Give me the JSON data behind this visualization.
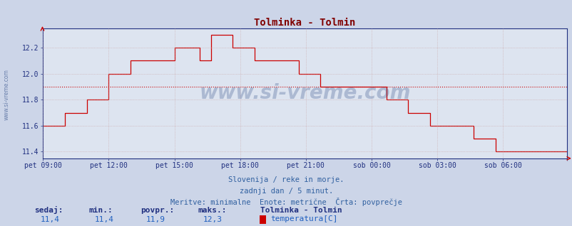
{
  "title": "Tolminka - Tolmin",
  "title_color": "#800000",
  "bg_color": "#ccd5e8",
  "plot_bg_color": "#dde4f0",
  "grid_color": "#c8a0a0",
  "line_color": "#cc0000",
  "avg_line_color": "#cc0000",
  "avg_line_value": 11.9,
  "ylabel_ticks": [
    11.4,
    11.6,
    11.8,
    12.0,
    12.2
  ],
  "ylim": [
    11.35,
    12.35
  ],
  "xlabel_ticks": [
    0,
    36,
    72,
    108,
    144,
    180,
    216,
    252,
    287
  ],
  "xlabel_labels": [
    "pet 09:00",
    "pet 12:00",
    "pet 15:00",
    "pet 18:00",
    "pet 21:00",
    "sob 00:00",
    "sob 03:00",
    "sob 06:00",
    ""
  ],
  "x_total_points": 288,
  "watermark": "www.si-vreme.com",
  "watermark_color": "#1a3a7a",
  "sub_text1": "Slovenija / reke in morje.",
  "sub_text2": "zadnji dan / 5 minut.",
  "sub_text3": "Meritve: minimalne  Enote: metrične  Črta: povprečje",
  "sub_color": "#3060a0",
  "bottom_labels": [
    "sedaj:",
    "min.:",
    "povpr.:",
    "maks.:"
  ],
  "bottom_values": [
    "11,4",
    "11,4",
    "11,9",
    "12,3"
  ],
  "bottom_label_color": "#203080",
  "bottom_value_color": "#2060c0",
  "legend_title": "Tolminka - Tolmin",
  "legend_label": "temperatura[C]",
  "legend_color": "#cc0000",
  "axis_color": "#203080",
  "tick_color": "#203080",
  "temperature_data": [
    11.6,
    11.6,
    11.6,
    11.6,
    11.6,
    11.6,
    11.6,
    11.6,
    11.6,
    11.6,
    11.6,
    11.6,
    11.7,
    11.7,
    11.7,
    11.7,
    11.7,
    11.7,
    11.7,
    11.7,
    11.7,
    11.7,
    11.7,
    11.7,
    11.8,
    11.8,
    11.8,
    11.8,
    11.8,
    11.8,
    11.8,
    11.8,
    11.8,
    11.8,
    11.8,
    11.8,
    12.0,
    12.0,
    12.0,
    12.0,
    12.0,
    12.0,
    12.0,
    12.0,
    12.0,
    12.0,
    12.0,
    12.0,
    12.1,
    12.1,
    12.1,
    12.1,
    12.1,
    12.1,
    12.1,
    12.1,
    12.1,
    12.1,
    12.1,
    12.1,
    12.1,
    12.1,
    12.1,
    12.1,
    12.1,
    12.1,
    12.1,
    12.1,
    12.1,
    12.1,
    12.1,
    12.1,
    12.2,
    12.2,
    12.2,
    12.2,
    12.2,
    12.2,
    12.2,
    12.2,
    12.2,
    12.2,
    12.2,
    12.2,
    12.2,
    12.2,
    12.1,
    12.1,
    12.1,
    12.1,
    12.1,
    12.1,
    12.3,
    12.3,
    12.3,
    12.3,
    12.3,
    12.3,
    12.3,
    12.3,
    12.3,
    12.3,
    12.3,
    12.3,
    12.2,
    12.2,
    12.2,
    12.2,
    12.2,
    12.2,
    12.2,
    12.2,
    12.2,
    12.2,
    12.2,
    12.2,
    12.1,
    12.1,
    12.1,
    12.1,
    12.1,
    12.1,
    12.1,
    12.1,
    12.1,
    12.1,
    12.1,
    12.1,
    12.1,
    12.1,
    12.1,
    12.1,
    12.1,
    12.1,
    12.1,
    12.1,
    12.1,
    12.1,
    12.1,
    12.1,
    12.0,
    12.0,
    12.0,
    12.0,
    12.0,
    12.0,
    12.0,
    12.0,
    12.0,
    12.0,
    12.0,
    12.0,
    11.9,
    11.9,
    11.9,
    11.9,
    11.9,
    11.9,
    11.9,
    11.9,
    11.9,
    11.9,
    11.9,
    11.9,
    11.9,
    11.9,
    11.9,
    11.9,
    11.9,
    11.9,
    11.9,
    11.9,
    11.9,
    11.9,
    11.9,
    11.9,
    11.9,
    11.9,
    11.9,
    11.9,
    11.9,
    11.9,
    11.9,
    11.9,
    11.9,
    11.9,
    11.9,
    11.9,
    11.8,
    11.8,
    11.8,
    11.8,
    11.8,
    11.8,
    11.8,
    11.8,
    11.8,
    11.8,
    11.8,
    11.8,
    11.7,
    11.7,
    11.7,
    11.7,
    11.7,
    11.7,
    11.7,
    11.7,
    11.7,
    11.7,
    11.7,
    11.7,
    11.6,
    11.6,
    11.6,
    11.6,
    11.6,
    11.6,
    11.6,
    11.6,
    11.6,
    11.6,
    11.6,
    11.6,
    11.6,
    11.6,
    11.6,
    11.6,
    11.6,
    11.6,
    11.6,
    11.6,
    11.6,
    11.6,
    11.6,
    11.6,
    11.5,
    11.5,
    11.5,
    11.5,
    11.5,
    11.5,
    11.5,
    11.5,
    11.5,
    11.5,
    11.5,
    11.5,
    11.4,
    11.4,
    11.4,
    11.4,
    11.4,
    11.4,
    11.4,
    11.4,
    11.4,
    11.4,
    11.4,
    11.4,
    11.4,
    11.4,
    11.4,
    11.4,
    11.4,
    11.4,
    11.4,
    11.4,
    11.4,
    11.4,
    11.4,
    11.4,
    11.4,
    11.4,
    11.4,
    11.4,
    11.4,
    11.4,
    11.4,
    11.4,
    11.4,
    11.4,
    11.4,
    11.4,
    11.4,
    11.4,
    11.4,
    11.4
  ]
}
